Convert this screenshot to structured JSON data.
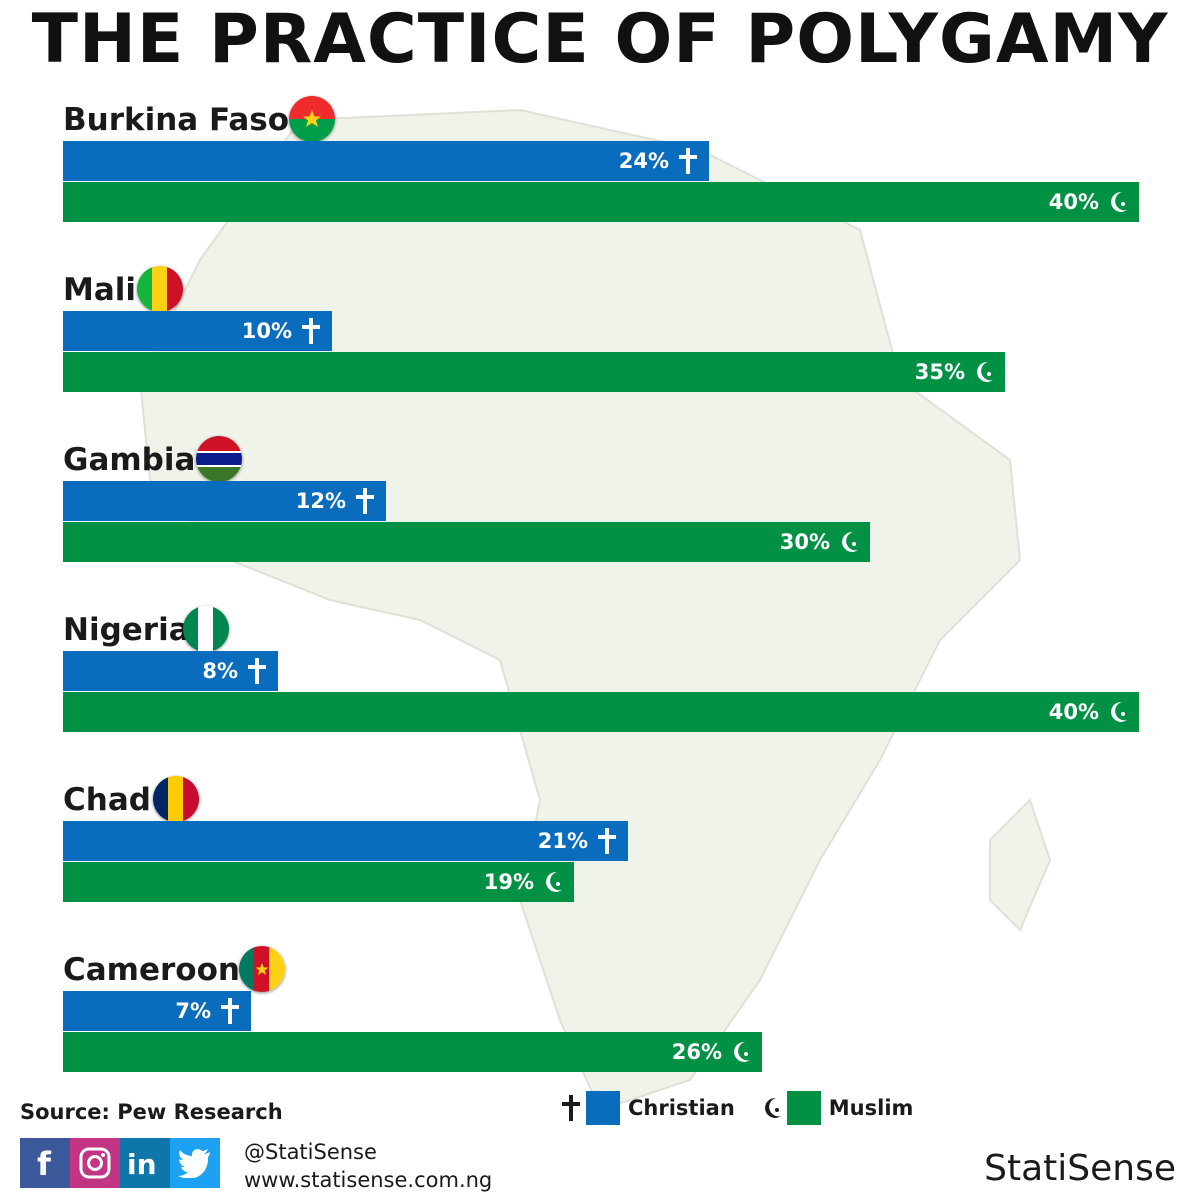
{
  "title": "THE PRACTICE OF POLYGAMY",
  "colors": {
    "christian": "#0a6cbd",
    "muslim": "#009144",
    "text": "#1a1a1a"
  },
  "chart_data": {
    "type": "bar",
    "orientation": "horizontal",
    "title": "THE PRACTICE OF POLYGAMY",
    "categories": [
      "Burkina Faso",
      "Mali",
      "Gambia",
      "Nigeria",
      "Chad",
      "Cameroon"
    ],
    "series": [
      {
        "name": "Christian",
        "color": "#0a6cbd",
        "icon": "cross-icon",
        "values": [
          24,
          10,
          12,
          8,
          21,
          7
        ],
        "labels": [
          "24%",
          "10%",
          "12%",
          "8%",
          "21%",
          "7%"
        ]
      },
      {
        "name": "Muslim",
        "color": "#009144",
        "icon": "crescent-icon",
        "values": [
          40,
          35,
          30,
          40,
          19,
          26
        ],
        "labels": [
          "40%",
          "35%",
          "30%",
          "40%",
          "19%",
          "26%"
        ]
      }
    ],
    "unit": "%",
    "xlim": [
      0,
      40
    ],
    "legend": "bottom-center",
    "grid": false
  },
  "countries": [
    {
      "name": "Burkina Faso",
      "flag": "burkina-faso-flag-icon"
    },
    {
      "name": "Mali",
      "flag": "mali-flag-icon"
    },
    {
      "name": "Gambia",
      "flag": "gambia-flag-icon"
    },
    {
      "name": "Nigeria",
      "flag": "nigeria-flag-icon"
    },
    {
      "name": "Chad",
      "flag": "chad-flag-icon"
    },
    {
      "name": "Cameroon",
      "flag": "cameroon-flag-icon"
    }
  ],
  "footer": {
    "source": "Source: Pew Research",
    "handle": "@StatiSense",
    "website": "www.statisense.com.ng",
    "brand": "StatiSense",
    "social_icons": [
      "facebook-icon",
      "instagram-icon",
      "linkedin-icon",
      "twitter-icon"
    ]
  },
  "legend": {
    "christian_label": "Christian",
    "muslim_label": "Muslim"
  }
}
